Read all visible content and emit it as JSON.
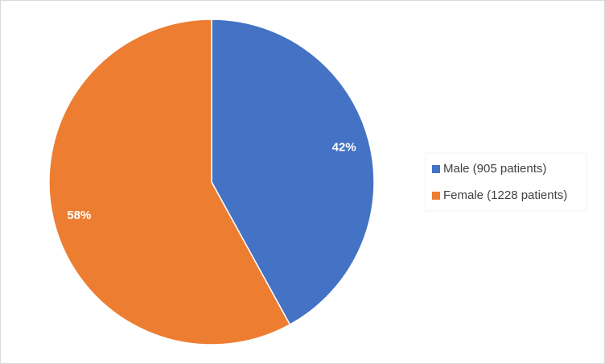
{
  "chart_data": {
    "type": "pie",
    "categories": [
      "Male (905 patients)",
      "Female (1228 patients)"
    ],
    "values": [
      42,
      58
    ],
    "value_labels": [
      "42%",
      "58%"
    ],
    "colors": [
      "#4472c4",
      "#ed7d31"
    ],
    "legend": "right"
  }
}
